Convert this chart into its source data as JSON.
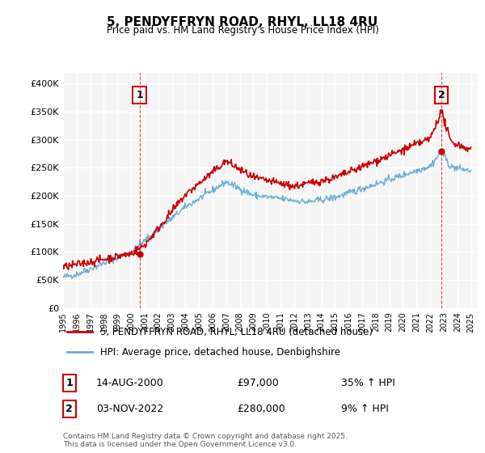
{
  "title": "5, PENDYFFRYN ROAD, RHYL, LL18 4RU",
  "subtitle": "Price paid vs. HM Land Registry's House Price Index (HPI)",
  "ylabel": "",
  "ylim": [
    0,
    420000
  ],
  "yticks": [
    0,
    50000,
    100000,
    150000,
    200000,
    250000,
    300000,
    350000,
    400000
  ],
  "ytick_labels": [
    "£0",
    "£50K",
    "£100K",
    "£150K",
    "£200K",
    "£250K",
    "£300K",
    "£350K",
    "£400K"
  ],
  "sale1_date_num": 2000.62,
  "sale1_price": 97000,
  "sale1_label": "1",
  "sale1_date_str": "14-AUG-2000",
  "sale1_hpi": "35% ↑ HPI",
  "sale2_date_num": 2022.84,
  "sale2_price": 280000,
  "sale2_label": "2",
  "sale2_date_str": "03-NOV-2022",
  "sale2_hpi": "9% ↑ HPI",
  "hpi_color": "#6baed6",
  "price_color": "#cc0000",
  "vline_color": "#cc0000",
  "background_color": "#f5f5f5",
  "grid_color": "#ffffff",
  "legend_label_price": "5, PENDYFFRYN ROAD, RHYL, LL18 4RU (detached house)",
  "legend_label_hpi": "HPI: Average price, detached house, Denbighshire",
  "footer": "Contains HM Land Registry data © Crown copyright and database right 2025.\nThis data is licensed under the Open Government Licence v3.0.",
  "xmin": 1995,
  "xmax": 2025.5
}
